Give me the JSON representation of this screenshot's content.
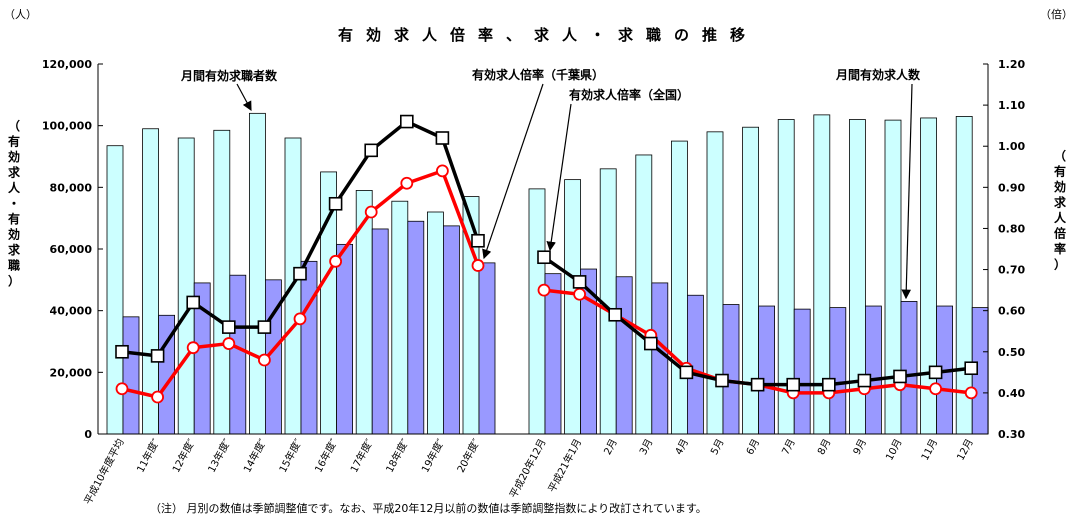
{
  "chart_data": {
    "type": "bar",
    "title": "有効求人倍率、求人・求職の推移",
    "left_unit": "（人）",
    "right_unit": "（倍）",
    "ylabel_left": "（有効求人・有効求職）",
    "ylabel_right": "（有効求人倍率）",
    "ylim_left": [
      0,
      120000
    ],
    "ylim_right": [
      0.3,
      1.2
    ],
    "yticks_left": [
      "0",
      "20,000",
      "40,000",
      "60,000",
      "80,000",
      "100,000",
      "120,000"
    ],
    "yticks_right": [
      "0.30",
      "0.40",
      "0.50",
      "0.60",
      "0.70",
      "0.80",
      "0.90",
      "1.00",
      "1.10",
      "1.20"
    ],
    "categories": [
      "平成10年度平均",
      "11年度″",
      "12年度″",
      "13年度″",
      "14年度″",
      "15年度″",
      "16年度″",
      "17年度″",
      "18年度″",
      "19年度″",
      "20年度″",
      "平成20年12月",
      "平成21年1月",
      "2月",
      "3月",
      "4月",
      "5月",
      "6月",
      "7月",
      "8月",
      "9月",
      "10月",
      "11月",
      "12月"
    ],
    "series": [
      {
        "name": "月間有効求職者数",
        "kind": "bar",
        "axis": "left",
        "color": "#ccffff",
        "values": [
          93500,
          99000,
          96000,
          98500,
          104000,
          96000,
          85000,
          79000,
          75500,
          72000,
          77000,
          79500,
          82500,
          86000,
          90500,
          95000,
          98000,
          99500,
          102000,
          103500,
          102000,
          101800,
          102500,
          103000
        ]
      },
      {
        "name": "月間有効求人数",
        "kind": "bar",
        "axis": "left",
        "color": "#9999ff",
        "values": [
          38000,
          38500,
          49000,
          51500,
          50000,
          56000,
          61500,
          66500,
          69000,
          67500,
          55500,
          52000,
          53500,
          51000,
          49000,
          45000,
          42000,
          41500,
          40500,
          41000,
          41500,
          43000,
          41500,
          41000
        ]
      },
      {
        "name": "有効求人倍率（千葉県）",
        "kind": "line",
        "axis": "right",
        "color": "#000000",
        "values": [
          0.5,
          0.49,
          0.62,
          0.56,
          0.56,
          0.69,
          0.86,
          0.99,
          1.06,
          1.02,
          0.77,
          0.73,
          0.67,
          0.59,
          0.52,
          0.45,
          0.43,
          0.42,
          0.42,
          0.42,
          0.43,
          0.44,
          0.45,
          0.46
        ]
      },
      {
        "name": "有効求人倍率（全国）",
        "kind": "line",
        "axis": "right",
        "color": "#ff0000",
        "values": [
          0.41,
          0.39,
          0.51,
          0.52,
          0.48,
          0.58,
          0.72,
          0.84,
          0.91,
          0.94,
          0.71,
          0.65,
          0.64,
          0.59,
          0.54,
          0.46,
          0.43,
          0.42,
          0.4,
          0.4,
          0.41,
          0.42,
          0.41,
          0.4
        ]
      }
    ],
    "annotations": {
      "jobseekers": "月間有効求職者数",
      "ratio_chiba": "有効求人倍率（千葉県）",
      "ratio_national": "有効求人倍率（全国）",
      "openings": "月間有効求人数"
    },
    "note": "（注） 月別の数値は季節調整値です。なお、平成20年12月以前の数値は季節調整指数により改訂されています。",
    "grid": false,
    "legend": "none"
  }
}
